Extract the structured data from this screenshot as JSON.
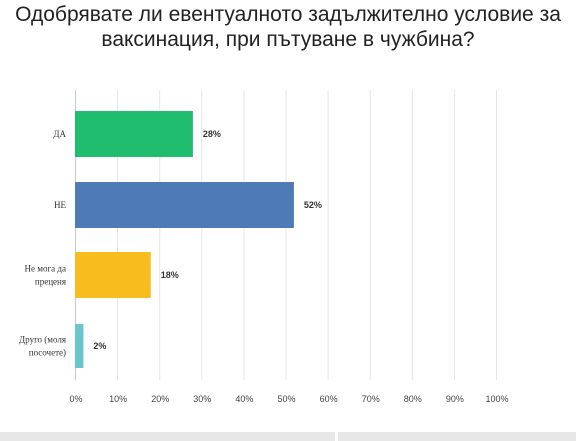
{
  "chart_data": {
    "type": "bar",
    "orientation": "horizontal",
    "title_lines": [
      "Одобрявате ли евентуалното задължително условие за",
      "ваксинация, при пътуване в чужбина?"
    ],
    "categories": [
      [
        "ДА"
      ],
      [
        "НЕ"
      ],
      [
        "Не мога да",
        "преценя"
      ],
      [
        "Друго (моля",
        "посочете)"
      ]
    ],
    "values": [
      28,
      52,
      18,
      2
    ],
    "value_labels": [
      "28%",
      "52%",
      "18%",
      "2%"
    ],
    "colors": [
      "#1fbd6d",
      "#4e7bb5",
      "#f7bd1f",
      "#68c6cf"
    ],
    "xlim": [
      0,
      100
    ],
    "xticks": [
      0,
      10,
      20,
      30,
      40,
      50,
      60,
      70,
      80,
      90,
      100
    ],
    "xtick_labels": [
      "0%",
      "10%",
      "20%",
      "30%",
      "40%",
      "50%",
      "60%",
      "70%",
      "80%",
      "90%",
      "100%"
    ],
    "grid": true,
    "legend": "none"
  }
}
